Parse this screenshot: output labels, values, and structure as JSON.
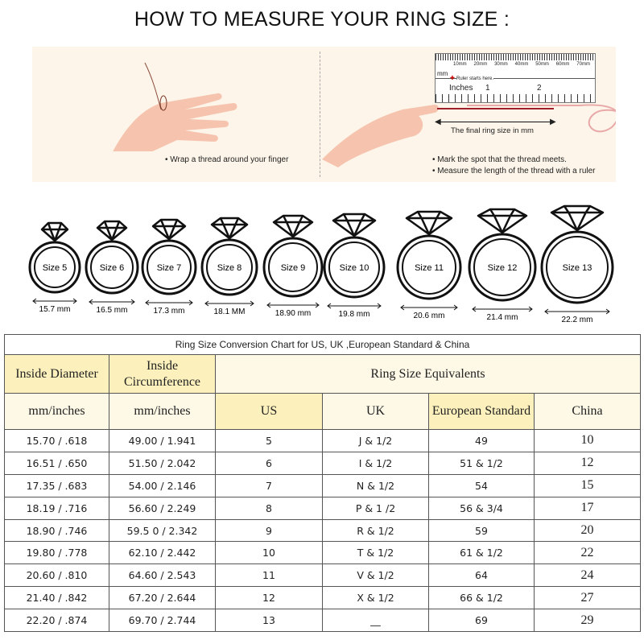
{
  "title": "HOW TO MEASURE YOUR RING SIZE :",
  "instructions": {
    "left": "Wrap a thread around your finger",
    "right": [
      "Mark the spot that the thread meets.",
      "Measure the length of the thread with a ruler"
    ],
    "ruler": {
      "mm_ticks": [
        "10mm",
        "20mm",
        "30mm",
        "40mm",
        "50mm",
        "60mm",
        "70mm"
      ],
      "mm_label": "mm",
      "start_note": "Ruler starts here.",
      "inches_label": "Inches",
      "inch_ticks": [
        "1",
        "2"
      ],
      "arrow_label": "The final ring size in mm"
    }
  },
  "colors": {
    "skin": "#f6c4ae",
    "thread": "#a0202a",
    "panel": "#fdf5e9",
    "header_yellow": "#fcf1bd",
    "header_light": "#fdf9e6"
  },
  "rings": [
    {
      "label": "Size 5",
      "mm": "15.7 mm"
    },
    {
      "label": "Size 6",
      "mm": "16.5 mm"
    },
    {
      "label": "Size 7",
      "mm": "17.3 mm"
    },
    {
      "label": "Size 8",
      "mm": "18.1 MM"
    },
    {
      "label": "Size 9",
      "mm": "18.90 mm"
    },
    {
      "label": "Size 10",
      "mm": "19.8 mm"
    },
    {
      "label": "Size 11",
      "mm": "20.6 mm"
    },
    {
      "label": "Size 12",
      "mm": "21.4 mm"
    },
    {
      "label": "Size 13",
      "mm": "22.2 mm"
    }
  ],
  "table": {
    "caption": "Ring Size Conversion Chart for US, UK ,European Standard & China",
    "h_diameter": "Inside Diameter",
    "h_circ": "Inside Circumference",
    "h_equiv": "Ring Size Equivalents",
    "sub": [
      "mm/inches",
      "mm/inches",
      "US",
      "UK",
      "European Standard",
      "China"
    ],
    "rows": [
      [
        "15.70 / .618",
        "49.00 / 1.941",
        "5",
        "J & 1/2",
        "49",
        "10"
      ],
      [
        "16.51 / .650",
        "51.50 / 2.042",
        "6",
        "I & 1/2",
        "51 & 1/2",
        "12"
      ],
      [
        "17.35 / .683",
        "54.00 / 2.146",
        "7",
        "N & 1/2",
        "54",
        "15"
      ],
      [
        "18.19 / .716",
        "56.60 / 2.249",
        "8",
        "P & 1 /2",
        "56 & 3/4",
        "17"
      ],
      [
        "18.90 / .746",
        "59.5 0 / 2.342",
        "9",
        "R & 1/2",
        "59",
        "20"
      ],
      [
        "19.80 / .778",
        "62.10 / 2.442",
        "10",
        "T & 1/2",
        "61 & 1/2",
        "22"
      ],
      [
        "20.60 / .810",
        "64.60 / 2.543",
        "11",
        "V & 1/2",
        "64",
        "24"
      ],
      [
        "21.40 / .842",
        "67.20 / 2.644",
        "12",
        "X & 1/2",
        "66 & 1/2",
        "27"
      ],
      [
        "22.20 / .874",
        "69.70 / 2.744",
        "13",
        "__",
        "69",
        "29"
      ]
    ]
  }
}
